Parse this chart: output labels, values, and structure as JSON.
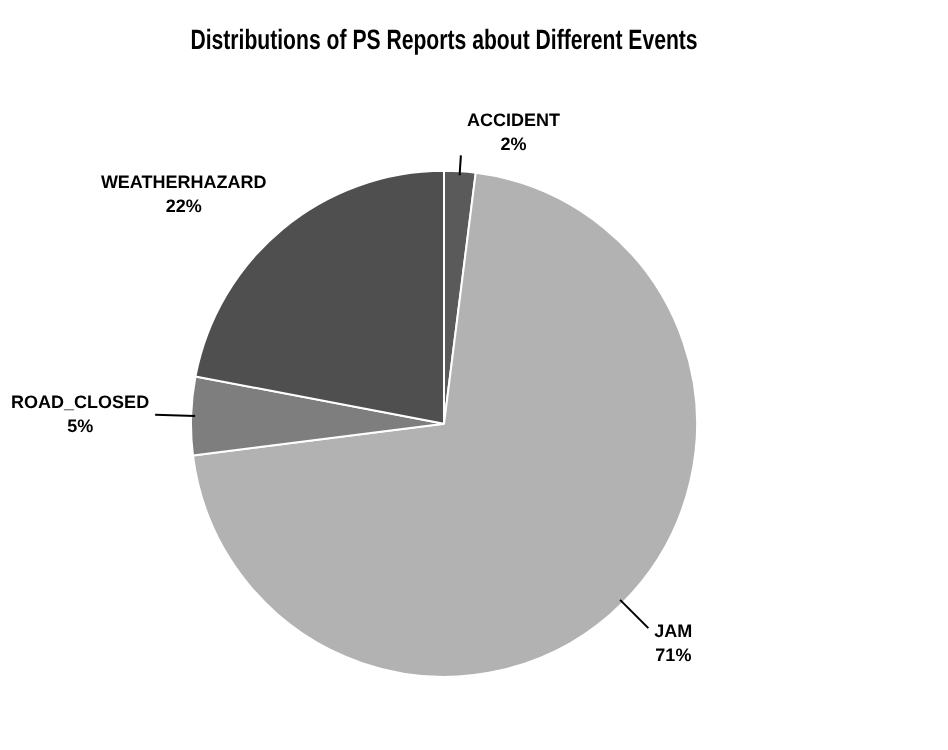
{
  "chart_data": {
    "type": "pie",
    "title": "Distributions of PS Reports about Different Events",
    "categories": [
      "ACCIDENT",
      "JAM",
      "ROAD_CLOSED",
      "WEATHERHAZARD"
    ],
    "values": [
      2,
      71,
      5,
      22
    ],
    "value_labels": [
      "2%",
      "71%",
      "5%",
      "22%"
    ],
    "colors": [
      "#5a5a5a",
      "#b2b2b2",
      "#7e7e7e",
      "#4f4f4f"
    ],
    "legend": false
  }
}
